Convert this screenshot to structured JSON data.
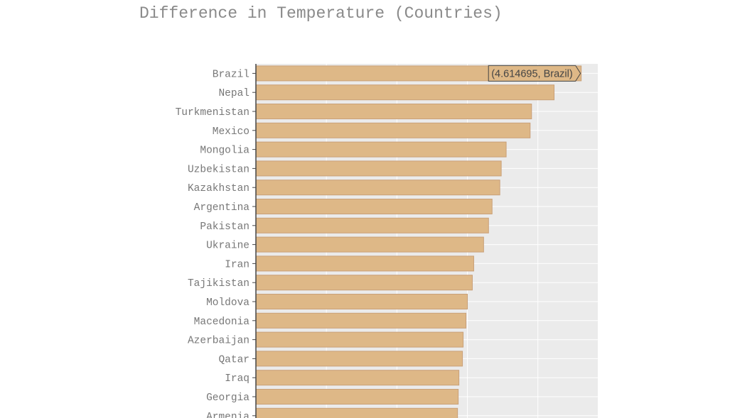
{
  "chart_data": {
    "type": "bar",
    "orientation": "horizontal",
    "title": "Difference in Temperature (Countries)",
    "xlabel": "",
    "ylabel": "",
    "categories": [
      "Brazil",
      "Nepal",
      "Turkmenistan",
      "Mexico",
      "Mongolia",
      "Uzbekistan",
      "Kazakhstan",
      "Argentina",
      "Pakistan",
      "Ukraine",
      "Iran",
      "Tajikistan",
      "Moldova",
      "Macedonia",
      "Azerbaijan",
      "Qatar",
      "Iraq",
      "Georgia",
      "Armenia"
    ],
    "values": [
      4.614695,
      4.23,
      3.91,
      3.89,
      3.55,
      3.48,
      3.46,
      3.35,
      3.3,
      3.23,
      3.09,
      3.07,
      3.0,
      2.98,
      2.94,
      2.93,
      2.88,
      2.87,
      2.86
    ],
    "xlim": [
      0,
      4.85
    ],
    "x_gridlines": [
      1,
      2,
      3,
      4
    ],
    "grid": true,
    "bar_color": "#deb887",
    "bar_stroke": "#c9a078",
    "panel_background": "#ebebeb",
    "tooltip": {
      "text": "(4.614695, Brazil)",
      "category_index": 0
    }
  }
}
